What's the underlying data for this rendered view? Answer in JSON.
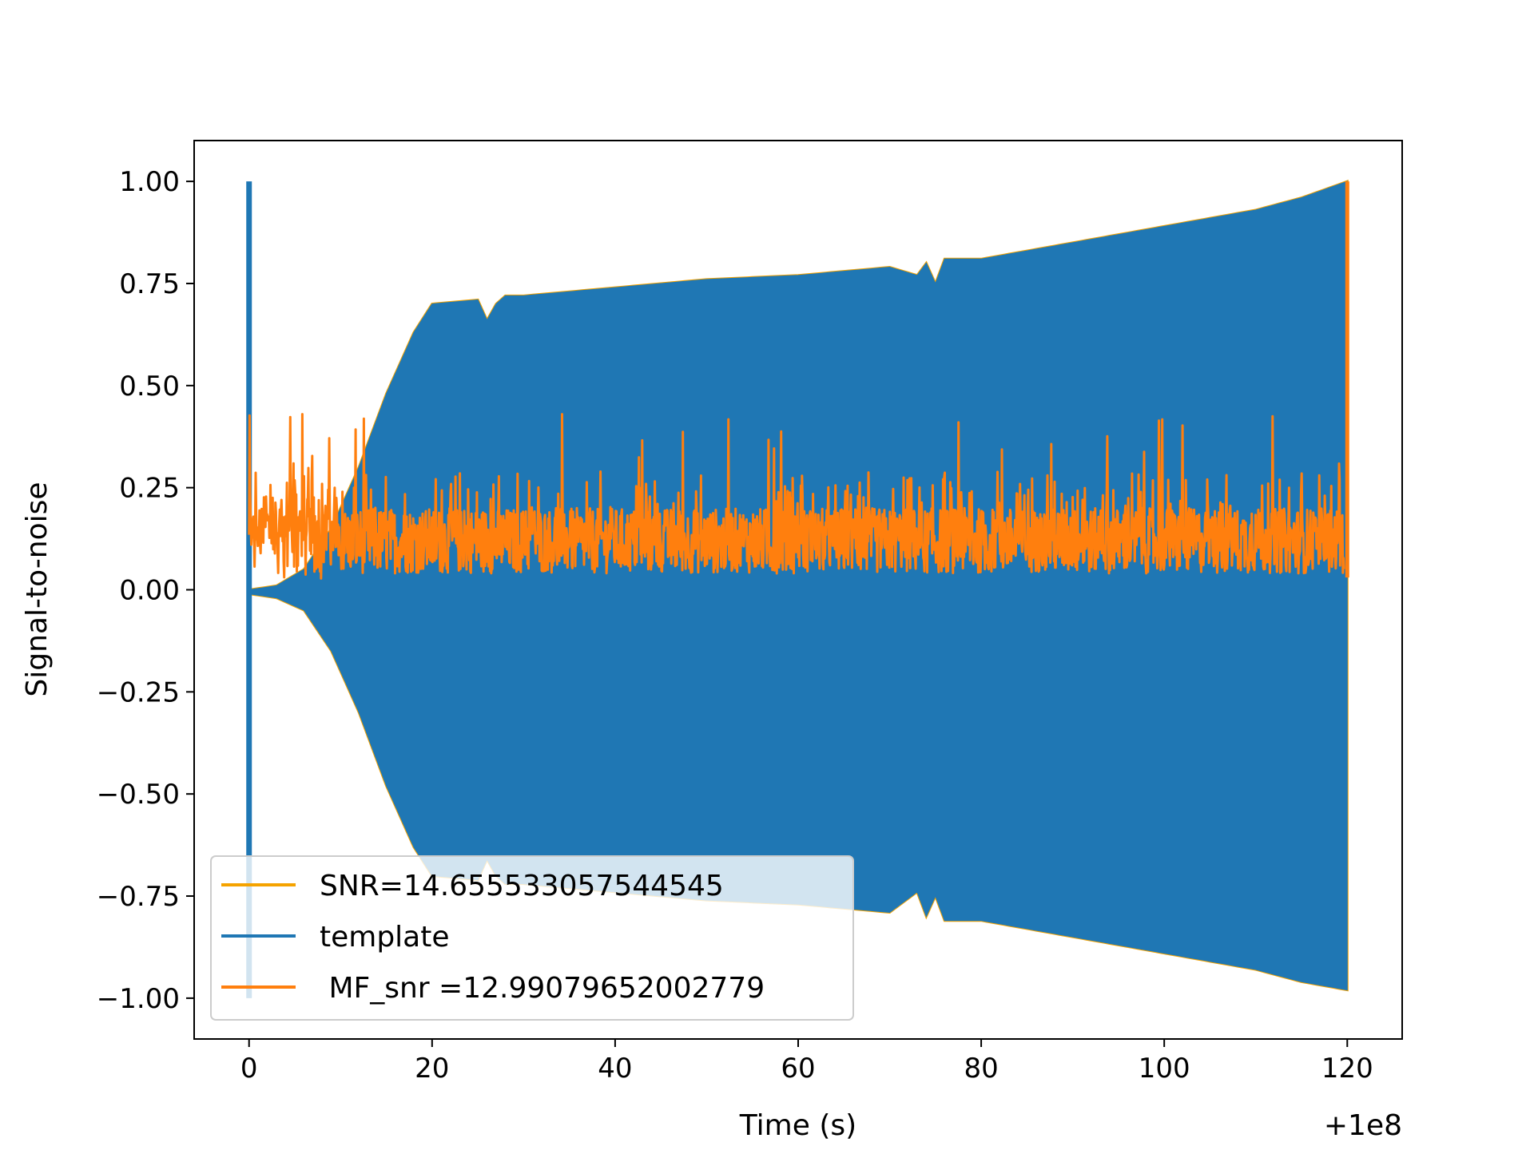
{
  "chart_data": {
    "type": "line",
    "title": "",
    "xlabel": "Time (s)",
    "ylabel": "Signal-to-noise",
    "x_offset_label": "+1e8",
    "xlim": [
      -6,
      126
    ],
    "ylim": [
      -1.1,
      1.1
    ],
    "xticks": [
      0,
      20,
      40,
      60,
      80,
      100,
      120
    ],
    "yticks": [
      1.0,
      0.75,
      0.5,
      0.25,
      0.0,
      -0.25,
      -0.5,
      -0.75,
      -1.0
    ],
    "xtick_labels": [
      "0",
      "20",
      "40",
      "60",
      "80",
      "100",
      "120"
    ],
    "ytick_labels": [
      "1.00",
      "0.75",
      "0.50",
      "0.25",
      "0.00",
      "−0.25",
      "−0.50",
      "−0.75",
      "−1.00"
    ],
    "grid": false,
    "legend_position": "lower-left",
    "series": [
      {
        "name": "SNR=14.655533057544545",
        "color": "#f5a300",
        "description_values": {
          "x": [
            0,
            5,
            10,
            15,
            20,
            25,
            30,
            40,
            50,
            60,
            70,
            74,
            80,
            90,
            100,
            110,
            120
          ],
          "upper": [
            0.0,
            0.05,
            0.25,
            0.55,
            0.7,
            0.71,
            0.72,
            0.74,
            0.76,
            0.77,
            0.79,
            0.79,
            0.81,
            0.85,
            0.89,
            0.94,
            1.0
          ],
          "lower": [
            0.0,
            -0.05,
            -0.25,
            -0.55,
            -0.7,
            -0.71,
            -0.72,
            -0.74,
            -0.76,
            -0.77,
            -0.79,
            -0.79,
            -0.81,
            -0.85,
            -0.89,
            -0.94,
            -1.0
          ]
        }
      },
      {
        "name": "template",
        "color": "#1f77b4",
        "envelope": {
          "x": [
            0,
            3,
            6,
            9,
            12,
            15,
            18,
            20,
            25,
            26,
            27,
            28,
            30,
            40,
            50,
            60,
            70,
            73,
            74,
            75,
            76,
            80,
            90,
            100,
            110,
            115,
            120
          ],
          "upper": [
            0.0,
            0.01,
            0.05,
            0.15,
            0.3,
            0.48,
            0.63,
            0.7,
            0.71,
            0.66,
            0.7,
            0.72,
            0.72,
            0.74,
            0.76,
            0.77,
            0.79,
            0.77,
            0.8,
            0.75,
            0.81,
            0.81,
            0.85,
            0.89,
            0.93,
            0.96,
            1.0
          ],
          "lower": [
            -0.01,
            -0.02,
            -0.05,
            -0.15,
            -0.3,
            -0.48,
            -0.63,
            -0.7,
            -0.71,
            -0.66,
            -0.7,
            -0.72,
            -0.72,
            -0.74,
            -0.76,
            -0.77,
            -0.79,
            -0.74,
            -0.8,
            -0.75,
            -0.81,
            -0.81,
            -0.85,
            -0.89,
            -0.93,
            -0.96,
            -0.98
          ]
        },
        "spike": {
          "x": 0,
          "upper": 1.0,
          "lower": -1.0
        }
      },
      {
        "name": " MF_snr =12.99079652002779",
        "color": "#ff7f0e",
        "baseline": 0.12,
        "noise_min": 0.0,
        "noise_max": 0.43,
        "end_spike": {
          "x": 120,
          "upper": 1.0,
          "lower": 0.03
        }
      }
    ]
  }
}
